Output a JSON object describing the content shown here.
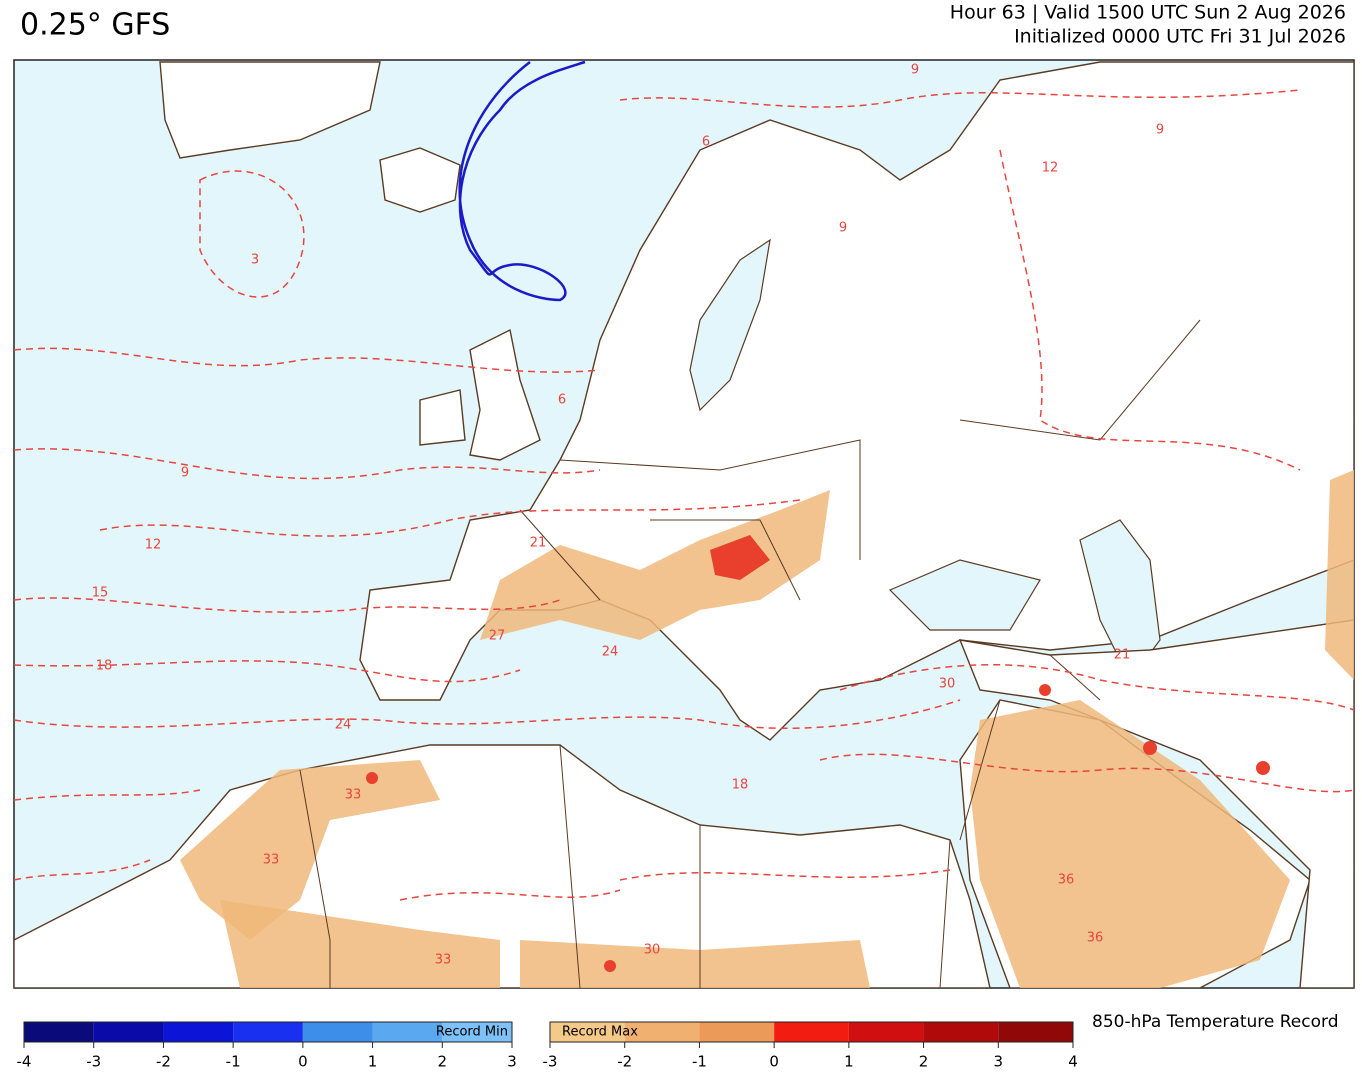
{
  "header": {
    "title": "0.25° GFS",
    "valid": "Hour 63 | Valid 1500 UTC Sun 2 Aug 2026",
    "initialized": "Initialized 0000 UTC Fri 31 Jul 2026"
  },
  "map": {
    "contour_labels": [
      3,
      6,
      9,
      12,
      15,
      18,
      24,
      21,
      27,
      24,
      30,
      33,
      33,
      33,
      30,
      36,
      36,
      18,
      21,
      12,
      9,
      9,
      6,
      9
    ]
  },
  "legend": {
    "title": "850-hPa Temperature Record",
    "min_bar": {
      "label": "Record Min",
      "ticks": [
        -4,
        -3,
        -2,
        -1,
        0,
        1,
        2,
        3
      ],
      "colors": [
        "#0a0a7a",
        "#0a0aa8",
        "#0c14d8",
        "#1a30f0",
        "#3d8ee8",
        "#5aa8f0",
        "#7ec0f8"
      ]
    },
    "max_bar": {
      "label": "Record Max",
      "ticks": [
        -3,
        -2,
        -1,
        0,
        1,
        2,
        3,
        4
      ],
      "colors": [
        "#f5c98a",
        "#f0b070",
        "#eb9a5a",
        "#f21c10",
        "#d01010",
        "#b00a0a",
        "#900808"
      ]
    }
  }
}
